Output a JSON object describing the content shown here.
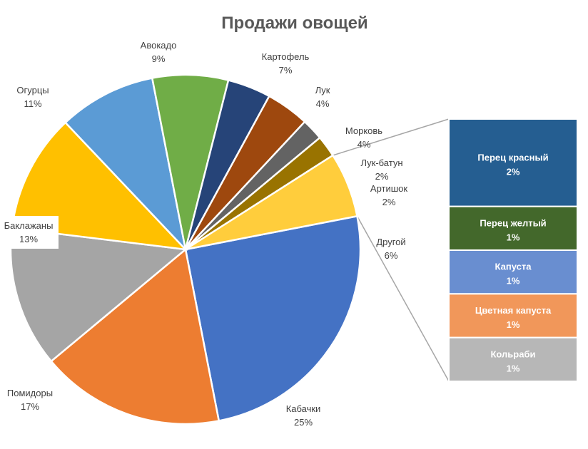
{
  "chart_data": {
    "type": "pie",
    "title": "Продажи овощей",
    "slices": [
      {
        "label": "Кабачки",
        "value_text": "25%",
        "value": 25,
        "color": "#4472C4"
      },
      {
        "label": "Помидоры",
        "value_text": "17%",
        "value": 17,
        "color": "#ED7D31"
      },
      {
        "label": "Баклажаны",
        "value_text": "13%",
        "value": 13,
        "color": "#A5A5A5"
      },
      {
        "label": "Огурцы",
        "value_text": "11%",
        "value": 11,
        "color": "#FFC000"
      },
      {
        "label": "Авокадо",
        "value_text": "9%",
        "value": 9,
        "color": "#5B9BD5"
      },
      {
        "label": "Картофель",
        "value_text": "7%",
        "value": 7,
        "color": "#70AD47"
      },
      {
        "label": "Лук",
        "value_text": "4%",
        "value": 4,
        "color": "#264478"
      },
      {
        "label": "Морковь",
        "value_text": "4%",
        "value": 4,
        "color": "#9E480E"
      },
      {
        "label": "Лук-батун",
        "value_text": "2%",
        "value": 2,
        "color": "#636363"
      },
      {
        "label": "Артишок",
        "value_text": "2%",
        "value": 2,
        "color": "#997300"
      },
      {
        "label": "Другой",
        "value_text": "6%",
        "value": 6,
        "color": "#FFCD3C"
      }
    ],
    "other_breakdown": {
      "type": "bar",
      "parent": "Другой",
      "items": [
        {
          "label": "Перец красный",
          "value_text": "2%",
          "value": 2,
          "color": "#255E91"
        },
        {
          "label": "Перец желтый",
          "value_text": "1%",
          "value": 1,
          "color": "#43682B"
        },
        {
          "label": "Капуста",
          "value_text": "1%",
          "value": 1,
          "color": "#698ED0"
        },
        {
          "label": "Цветная капуста",
          "value_text": "1%",
          "value": 1,
          "color": "#F1975A"
        },
        {
          "label": "Кольраби",
          "value_text": "1%",
          "value": 1,
          "color": "#B7B7B7"
        }
      ]
    },
    "legend": "none",
    "grid": false
  }
}
